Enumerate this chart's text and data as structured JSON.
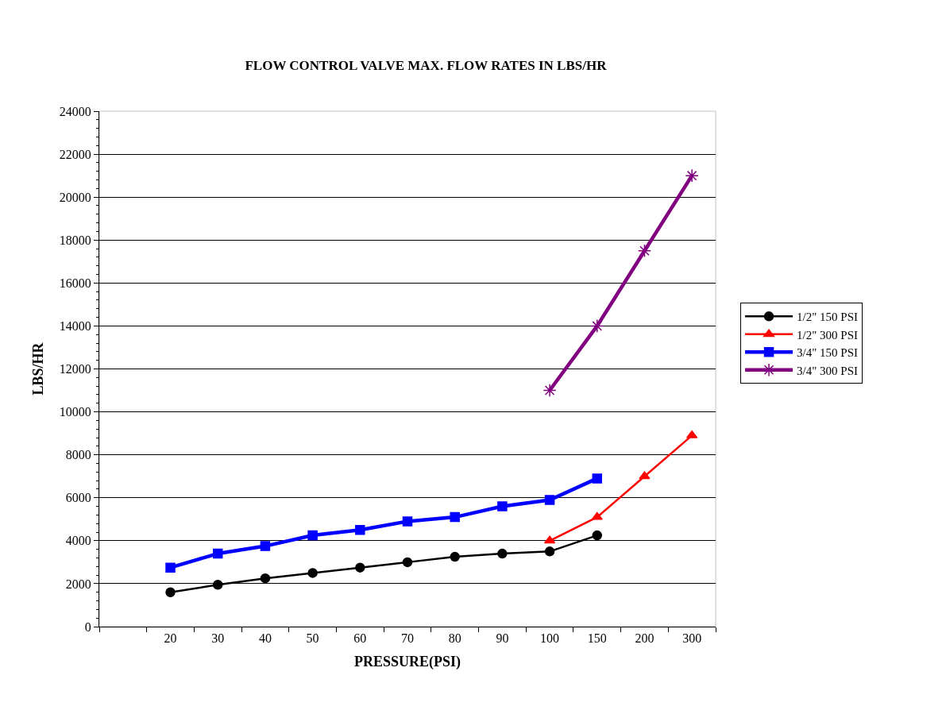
{
  "chart_data": {
    "type": "line",
    "title": "FLOW CONTROL VALVE MAX. FLOW RATES IN LBS/HR",
    "xlabel": "PRESSURE(PSI)",
    "ylabel": "LBS/HR",
    "categories": [
      null,
      "20",
      "30",
      "40",
      "50",
      "60",
      "70",
      "80",
      "90",
      "100",
      "150",
      "200",
      "300"
    ],
    "series": [
      {
        "name": "1/2\" 150 PSI",
        "color": "#000000",
        "marker": "circle",
        "values": [
          null,
          1600,
          1950,
          2250,
          2500,
          2750,
          3000,
          3250,
          3400,
          3500,
          4250,
          null,
          null
        ]
      },
      {
        "name": "1/2\" 300 PSI",
        "color": "#ff0000",
        "marker": "triangle",
        "values": [
          null,
          null,
          null,
          null,
          null,
          null,
          null,
          null,
          null,
          4000,
          5100,
          7000,
          8900
        ]
      },
      {
        "name": "3/4\" 150 PSI",
        "color": "#0000ff",
        "marker": "square",
        "values": [
          null,
          2750,
          3400,
          3750,
          4250,
          4500,
          4900,
          5100,
          5600,
          5900,
          6900,
          null,
          null
        ]
      },
      {
        "name": "3/4\" 300 PSI",
        "color": "#800080",
        "marker": "cross",
        "values": [
          null,
          null,
          null,
          null,
          null,
          null,
          null,
          null,
          null,
          11000,
          14000,
          17500,
          21000
        ]
      }
    ],
    "ylim": [
      0,
      24000
    ],
    "yticks": [
      0,
      2000,
      4000,
      6000,
      8000,
      10000,
      12000,
      14000,
      16000,
      18000,
      20000,
      22000,
      24000
    ],
    "grid": "y",
    "legend": "right"
  }
}
